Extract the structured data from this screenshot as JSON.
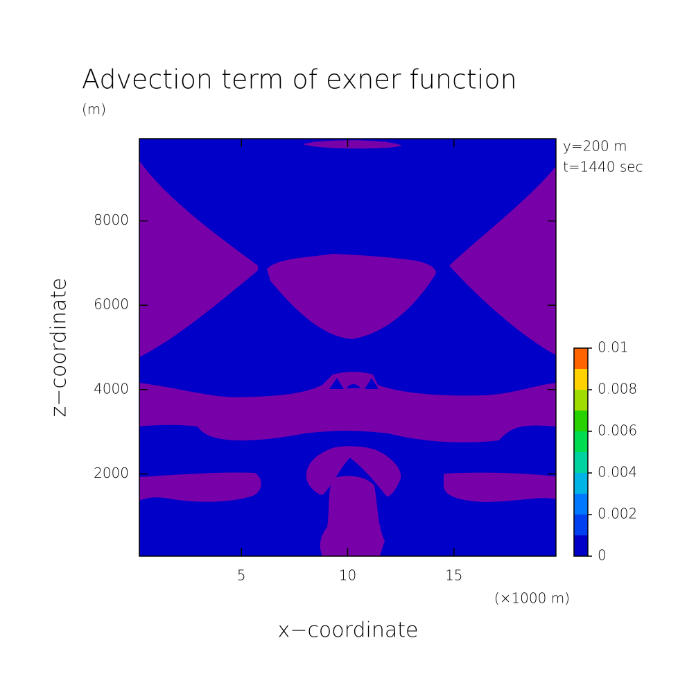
{
  "chart_data": {
    "type": "contour",
    "title": "Advection term of exner function",
    "y_unit": "(m)",
    "x_unit": "(×1000 m)",
    "x_label": "x−coordinate",
    "y_label": "z−coordinate",
    "annotations": [
      "y=200 m",
      "t=1440 sec"
    ],
    "xlim": [
      0.2,
      19.8
    ],
    "xticks": [
      5,
      10,
      15
    ],
    "ylim": [
      50,
      9950
    ],
    "yticks": [
      2000,
      4000,
      6000,
      8000
    ],
    "colorbar": {
      "levels": [
        0,
        0.001,
        0.002,
        0.003,
        0.004,
        0.005,
        0.006,
        0.007,
        0.008,
        0.009,
        0.01
      ],
      "colors": [
        "#0000c8",
        "#0040f0",
        "#0078ff",
        "#00b4e6",
        "#00d2a0",
        "#00dc50",
        "#28d200",
        "#a0dc00",
        "#ffd200",
        "#ff6400",
        "#f02828"
      ],
      "ticks": [
        0,
        0.002,
        0.004,
        0.006,
        0.008,
        0.01
      ],
      "below_color": "#7800a8"
    }
  }
}
